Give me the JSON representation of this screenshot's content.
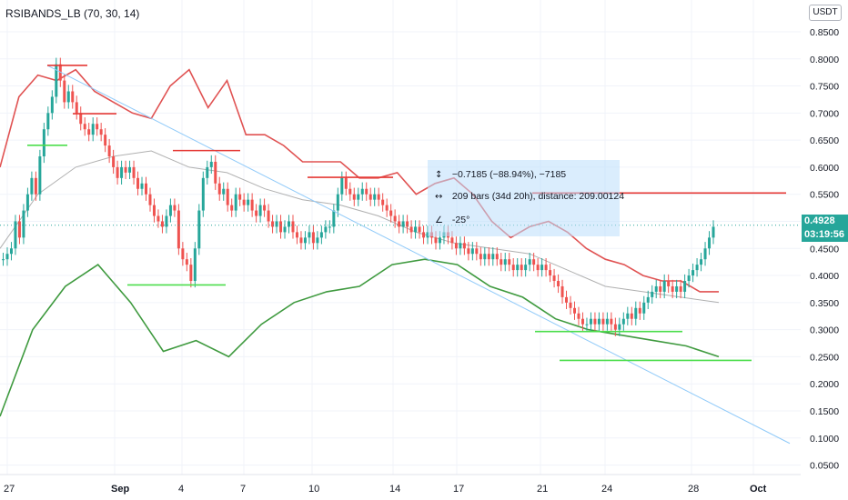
{
  "indicator": {
    "label": "RSIBANDS_LB (70, 30, 14)"
  },
  "currency": "USDT",
  "price_badge": {
    "value": "0.4928",
    "color": "#26a69a"
  },
  "countdown_badge": {
    "value": "03:19:56",
    "color": "#26a69a"
  },
  "measure": {
    "price_change": "−0.7185 (−88.94%), −7185",
    "bars": "209 bars (34d 20h), distance: 209.00124",
    "angle": "-25°",
    "icons": [
      "vertical-arrows-icon",
      "horizontal-arrows-icon",
      "angle-icon"
    ]
  },
  "colors": {
    "bull": "#26a69a",
    "bear": "#ef5350",
    "upper_band": "#e05252",
    "lower_band": "#3f9a3f",
    "middle_band": "#b0b0b0",
    "trend_line": "#90caf9",
    "resistance": "#e53935",
    "support": "#4cde4c",
    "grid": "#f0f3fa"
  },
  "chart_data": {
    "type": "candlestick",
    "ylim": [
      0.0325,
      0.9087
    ],
    "y_ticks": [
      "0.0500",
      "0.1000",
      "0.1500",
      "0.2000",
      "0.2500",
      "0.3000",
      "0.3500",
      "0.4000",
      "0.4500",
      "0.5000",
      "0.5500",
      "0.6000",
      "0.6500",
      "0.7000",
      "0.7500",
      "0.8000",
      "0.8500"
    ],
    "x_tick_labels": [
      "27",
      "Sep",
      "4",
      "7",
      "10",
      "14",
      "17",
      "21",
      "24",
      "28",
      "Oct"
    ],
    "current_price": 0.4928,
    "candles": [
      0.43,
      0.44,
      0.45,
      0.5,
      0.47,
      0.52,
      0.55,
      0.58,
      0.55,
      0.62,
      0.67,
      0.7,
      0.73,
      0.79,
      0.76,
      0.72,
      0.74,
      0.72,
      0.7,
      0.68,
      0.67,
      0.66,
      0.68,
      0.67,
      0.66,
      0.64,
      0.62,
      0.6,
      0.58,
      0.6,
      0.59,
      0.6,
      0.58,
      0.56,
      0.57,
      0.55,
      0.53,
      0.51,
      0.5,
      0.49,
      0.51,
      0.53,
      0.52,
      0.45,
      0.43,
      0.42,
      0.39,
      0.45,
      0.52,
      0.58,
      0.6,
      0.61,
      0.57,
      0.55,
      0.56,
      0.53,
      0.52,
      0.55,
      0.54,
      0.53,
      0.54,
      0.52,
      0.51,
      0.53,
      0.52,
      0.5,
      0.49,
      0.5,
      0.48,
      0.49,
      0.5,
      0.48,
      0.47,
      0.46,
      0.47,
      0.48,
      0.46,
      0.47,
      0.48,
      0.49,
      0.49,
      0.52,
      0.55,
      0.58,
      0.56,
      0.55,
      0.54,
      0.55,
      0.56,
      0.55,
      0.54,
      0.55,
      0.54,
      0.53,
      0.52,
      0.51,
      0.5,
      0.49,
      0.5,
      0.49,
      0.48,
      0.49,
      0.48,
      0.47,
      0.48,
      0.47,
      0.46,
      0.47,
      0.48,
      0.47,
      0.46,
      0.45,
      0.46,
      0.45,
      0.44,
      0.45,
      0.44,
      0.43,
      0.44,
      0.43,
      0.44,
      0.43,
      0.42,
      0.43,
      0.42,
      0.41,
      0.42,
      0.41,
      0.42,
      0.43,
      0.42,
      0.41,
      0.42,
      0.41,
      0.4,
      0.39,
      0.38,
      0.36,
      0.35,
      0.34,
      0.33,
      0.32,
      0.31,
      0.31,
      0.32,
      0.31,
      0.32,
      0.31,
      0.32,
      0.31,
      0.3,
      0.31,
      0.32,
      0.33,
      0.32,
      0.34,
      0.33,
      0.35,
      0.36,
      0.37,
      0.38,
      0.37,
      0.39,
      0.38,
      0.37,
      0.38,
      0.37,
      0.39,
      0.4,
      0.41,
      0.42,
      0.43,
      0.45,
      0.47,
      0.49
    ],
    "upper_band": [
      [
        0.66,
        0.6
      ],
      [
        0.76,
        0.73
      ],
      [
        0.8,
        0.77
      ],
      [
        0.83,
        0.76
      ],
      [
        0.86,
        0.78
      ],
      [
        0.88,
        0.74
      ],
      [
        0.89,
        0.72
      ],
      [
        0.91,
        0.7
      ],
      [
        0.92,
        0.69
      ],
      [
        0.94,
        0.75
      ],
      [
        0.95,
        0.78
      ],
      [
        0.96,
        0.71
      ],
      [
        0.98,
        0.76
      ],
      [
        0.99,
        0.66
      ],
      [
        1.01,
        0.66
      ],
      [
        1.03,
        0.64
      ],
      [
        1.05,
        0.61
      ],
      [
        1.07,
        0.61
      ],
      [
        1.09,
        0.61
      ],
      [
        1.11,
        0.58
      ],
      [
        1.13,
        0.58
      ],
      [
        1.15,
        0.59
      ],
      [
        1.17,
        0.55
      ],
      [
        1.19,
        0.57
      ],
      [
        1.21,
        0.58
      ],
      [
        1.23,
        0.55
      ],
      [
        1.25,
        0.5
      ],
      [
        1.27,
        0.47
      ],
      [
        1.29,
        0.49
      ],
      [
        1.31,
        0.5
      ],
      [
        1.33,
        0.48
      ],
      [
        1.35,
        0.45
      ],
      [
        1.37,
        0.43
      ],
      [
        1.4,
        0.42
      ],
      [
        1.42,
        0.4
      ],
      [
        1.44,
        0.39
      ],
      [
        1.46,
        0.39
      ],
      [
        1.48,
        0.37
      ],
      [
        1.5,
        0.37
      ]
    ],
    "middle_band": [
      [
        0.5,
        0.45
      ],
      [
        0.6,
        0.55
      ],
      [
        0.65,
        0.6
      ],
      [
        0.7,
        0.62
      ],
      [
        0.75,
        0.63
      ],
      [
        0.8,
        0.6
      ],
      [
        0.85,
        0.59
      ],
      [
        0.9,
        0.56
      ],
      [
        0.95,
        0.54
      ],
      [
        1.0,
        0.53
      ],
      [
        1.05,
        0.51
      ],
      [
        1.1,
        0.48
      ],
      [
        1.15,
        0.46
      ],
      [
        1.2,
        0.45
      ],
      [
        1.25,
        0.44
      ],
      [
        1.3,
        0.41
      ],
      [
        1.35,
        0.38
      ],
      [
        1.4,
        0.37
      ],
      [
        1.45,
        0.36
      ],
      [
        1.5,
        0.35
      ]
    ],
    "lower_band": [
      [
        0.2,
        0.14
      ],
      [
        0.3,
        0.3
      ],
      [
        0.35,
        0.38
      ],
      [
        0.38,
        0.42
      ],
      [
        0.36,
        0.35
      ],
      [
        0.32,
        0.26
      ],
      [
        0.33,
        0.28
      ],
      [
        0.31,
        0.25
      ],
      [
        0.3,
        0.31
      ],
      [
        0.32,
        0.35
      ],
      [
        0.34,
        0.37
      ],
      [
        0.36,
        0.38
      ],
      [
        0.4,
        0.42
      ],
      [
        0.43,
        0.43
      ],
      [
        0.45,
        0.42
      ],
      [
        0.4,
        0.38
      ],
      [
        0.37,
        0.36
      ],
      [
        0.33,
        0.32
      ],
      [
        0.32,
        0.3
      ],
      [
        0.31,
        0.29
      ],
      [
        0.3,
        0.28
      ],
      [
        0.27,
        0.27
      ],
      [
        0.26,
        0.25
      ]
    ],
    "horizontal_levels": [
      {
        "kind": "resistance",
        "y": 0.788
      },
      {
        "kind": "resistance",
        "y": 0.6988
      },
      {
        "kind": "resistance",
        "y": 0.6307
      },
      {
        "kind": "resistance",
        "y": 0.5813
      },
      {
        "kind": "resistance",
        "y": 0.5523
      },
      {
        "kind": "support",
        "y": 0.6405
      },
      {
        "kind": "support",
        "y": 0.3825
      },
      {
        "kind": "support",
        "y": 0.2965
      },
      {
        "kind": "support",
        "y": 0.2432
      }
    ],
    "trend_line": [
      [
        0.788,
        0.09
      ]
    ]
  }
}
